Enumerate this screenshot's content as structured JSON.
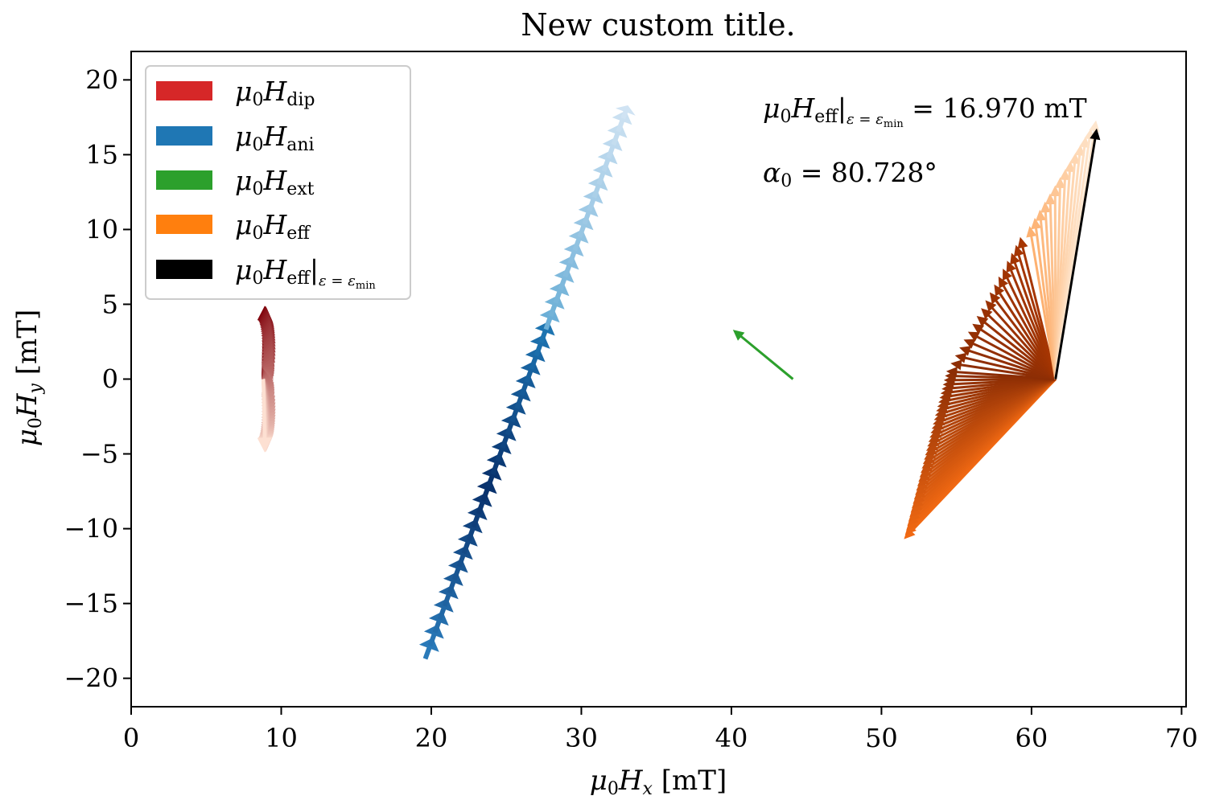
{
  "chart_data": {
    "type": "quiver",
    "title": "New custom title.",
    "xlabel": "μ0Hx [mT]",
    "ylabel": "μ0Hy [mT]",
    "xlim": [
      0,
      70.3
    ],
    "ylim": [
      -21.9,
      21.9
    ],
    "xticks": [
      0,
      10,
      20,
      30,
      40,
      50,
      60,
      70
    ],
    "yticks": [
      -20,
      -15,
      -10,
      -5,
      0,
      5,
      10,
      15,
      20
    ],
    "grid": false,
    "legend_position": "top-left",
    "series": [
      {
        "name": "μ0Hdip",
        "key": "dip",
        "color": "#d62728",
        "colormap": "Reds",
        "origin": [
          8.8,
          0
        ],
        "description_vectors_min": [
          8.8,
          -4.9
        ],
        "description_vectors_max": [
          9.0,
          4.9
        ]
      },
      {
        "name": "μ0Hani",
        "key": "ani",
        "color": "#1f77b4",
        "colormap": "Blues",
        "tail_range": [
          [
            19.6,
            -18.7
          ],
          [
            33.1,
            18.3
          ]
        ]
      },
      {
        "name": "μ0Hext",
        "key": "ext",
        "color": "#2ca02c",
        "origin": [
          44.1,
          0.0
        ],
        "tip": [
          40.1,
          3.3
        ]
      },
      {
        "name": "μ0Heff",
        "key": "eff",
        "color": "#ff7f0e",
        "colormap": "Oranges",
        "origin": [
          61.6,
          0.0
        ],
        "tips_range": [
          [
            51.5,
            -10.7
          ],
          [
            64.3,
            17.3
          ]
        ]
      },
      {
        "name": "μ0Heff|ε=εmin",
        "key": "effmin",
        "color": "#000000",
        "origin": [
          61.6,
          0.0
        ],
        "tip": [
          64.35,
          16.75
        ]
      }
    ],
    "annotations": [
      {
        "key": "heff",
        "prefix": "μ0Heff|ε = εmin",
        "text": "= 16.970 mT"
      },
      {
        "key": "alpha",
        "prefix": "α0",
        "text": "= 80.728°"
      }
    ]
  },
  "colors": {
    "axis": "#000000",
    "background": "#ffffff",
    "legend_border": "#cccccc"
  }
}
